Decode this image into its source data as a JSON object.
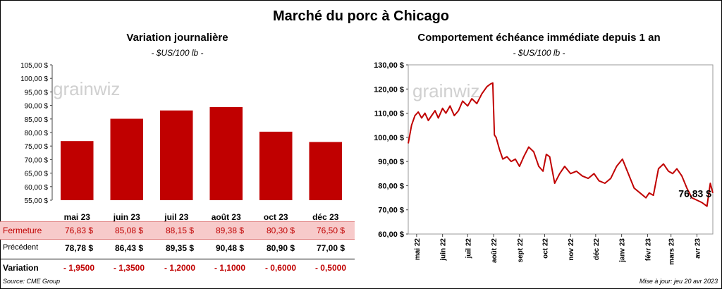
{
  "title": "Marché du porc à Chicago",
  "left": {
    "title": "Variation journalière",
    "units": "- $US/100 lb -",
    "watermark": "grainwiz",
    "rows": {
      "close_label": "Fermeture",
      "prev_label": "Précédent",
      "var_label": "Variation",
      "close": [
        "76,83  $",
        "85,08  $",
        "88,15  $",
        "89,38  $",
        "80,30  $",
        "76,50  $"
      ],
      "prev": [
        "78,78  $",
        "86,43  $",
        "89,35  $",
        "90,48  $",
        "80,90  $",
        "77,00  $"
      ],
      "var": [
        "- 1,9500",
        "- 1,3500",
        "- 1,2000",
        "- 1,1000",
        "- 0,6000",
        "- 0,5000"
      ]
    }
  },
  "right": {
    "title": "Comportement  échéance immédiate depuis 1 an",
    "units": "- $US/100 lb -",
    "watermark": "grainwiz",
    "last_label": "76,83 $"
  },
  "footer": {
    "source": "Source: CME Group",
    "updated": "Mise à jour: jeu 20 avr 2023"
  },
  "colors": {
    "bar": "#c00000",
    "line": "#c00000",
    "close_row_bg": "#f7caca"
  },
  "chart_data": [
    {
      "type": "bar",
      "title": "Variation journalière",
      "ylabel": "- $US/100 lb -",
      "categories": [
        "mai 23",
        "juin 23",
        "juil 23",
        "août 23",
        "oct 23",
        "déc 23"
      ],
      "values": [
        76.83,
        85.08,
        88.15,
        89.38,
        80.3,
        76.5
      ],
      "ylim": [
        55,
        105
      ],
      "yticks": [
        "55,00 $",
        "60,00 $",
        "65,00 $",
        "70,00 $",
        "75,00 $",
        "80,00 $",
        "85,00 $",
        "90,00 $",
        "95,00 $",
        "100,00 $",
        "105,00 $"
      ],
      "grid": false
    },
    {
      "type": "line",
      "title": "Comportement  échéance immédiate depuis 1 an",
      "ylabel": "- $US/100 lb -",
      "ylim": [
        60,
        130
      ],
      "yticks": [
        "60,00 $",
        "70,00 $",
        "80,00 $",
        "90,00 $",
        "100,00 $",
        "110,00 $",
        "120,00 $",
        "130,00 $"
      ],
      "xticks": [
        "mai 22",
        "juin 22",
        "juil 22",
        "août 22",
        "sept 22",
        "oct 22",
        "nov 22",
        "déc 22",
        "janv 23",
        "févr 23",
        "mars 23",
        "avr 23"
      ],
      "x": [
        "2022-04-21",
        "2022-04-25",
        "2022-04-29",
        "2022-05-03",
        "2022-05-07",
        "2022-05-11",
        "2022-05-15",
        "2022-05-19",
        "2022-05-23",
        "2022-05-27",
        "2022-06-01",
        "2022-06-05",
        "2022-06-10",
        "2022-06-15",
        "2022-06-20",
        "2022-06-25",
        "2022-07-01",
        "2022-07-06",
        "2022-07-12",
        "2022-07-18",
        "2022-07-24",
        "2022-07-28",
        "2022-07-31",
        "2022-08-02",
        "2022-08-04",
        "2022-08-08",
        "2022-08-12",
        "2022-08-17",
        "2022-08-22",
        "2022-08-27",
        "2022-09-01",
        "2022-09-06",
        "2022-09-12",
        "2022-09-18",
        "2022-09-24",
        "2022-09-29",
        "2022-10-03",
        "2022-10-07",
        "2022-10-13",
        "2022-10-19",
        "2022-10-25",
        "2022-11-01",
        "2022-11-08",
        "2022-11-15",
        "2022-11-22",
        "2022-11-29",
        "2022-12-05",
        "2022-12-12",
        "2022-12-19",
        "2022-12-26",
        "2023-01-02",
        "2023-01-09",
        "2023-01-16",
        "2023-01-23",
        "2023-01-30",
        "2023-02-03",
        "2023-02-08",
        "2023-02-14",
        "2023-02-20",
        "2023-02-26",
        "2023-03-03",
        "2023-03-08",
        "2023-03-14",
        "2023-03-20",
        "2023-03-26",
        "2023-04-01",
        "2023-04-07",
        "2023-04-13",
        "2023-04-17",
        "2023-04-20"
      ],
      "values": [
        97.5,
        105,
        109,
        110.5,
        108,
        110,
        107,
        109,
        111,
        108,
        112,
        110,
        113,
        109,
        111,
        115,
        113,
        116,
        114,
        118,
        121,
        122,
        122.5,
        101,
        100,
        95,
        91,
        92,
        90,
        91,
        88,
        92,
        96,
        94,
        88,
        86,
        93,
        92,
        81,
        85,
        88,
        85,
        86,
        84,
        83,
        85,
        82,
        81,
        83,
        88,
        91,
        85,
        79,
        77,
        75,
        77,
        76,
        87,
        89,
        86,
        85,
        87,
        84,
        79,
        75,
        74,
        73,
        71.5,
        81,
        77
      ]
    }
  ]
}
